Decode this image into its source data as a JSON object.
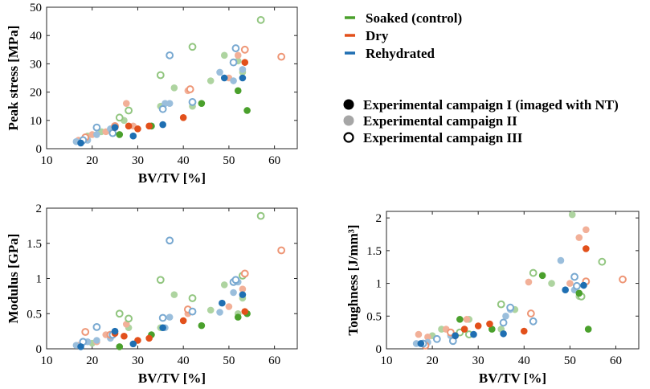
{
  "colors": {
    "soaked": "#4aa02c",
    "dry": "#e2501b",
    "rehydrated": "#1f6fb2",
    "campaign_solid": "#000000",
    "campaign_light": "#a6a6a6"
  },
  "legend": {
    "conditions": [
      {
        "key": "soaked",
        "label": "Soaked (control)"
      },
      {
        "key": "dry",
        "label": "Dry"
      },
      {
        "key": "rehydrated",
        "label": "Rehydrated"
      }
    ],
    "campaigns": [
      {
        "style": "I",
        "label": "Experimental campaign I (imaged with NT)"
      },
      {
        "style": "II",
        "label": "Experimental campaign II"
      },
      {
        "style": "III",
        "label": "Experimental campaign III"
      }
    ]
  },
  "chart_data": [
    {
      "id": "peak",
      "type": "scatter",
      "xlabel": "BV/TV [%]",
      "ylabel": "Peak stress [MPa]",
      "xlim": [
        10,
        65
      ],
      "ylim": [
        0,
        50
      ],
      "xticks": [
        10,
        20,
        30,
        40,
        50,
        60
      ],
      "yticks": [
        0,
        10,
        20,
        30,
        40,
        50
      ],
      "series": [
        {
          "name": "Soaked (control)",
          "color": "soaked",
          "campaign": "I",
          "points": [
            [
              26,
              5
            ],
            [
              33,
              8
            ],
            [
              44,
              16
            ],
            [
              52,
              20.5
            ],
            [
              54,
              13.5
            ]
          ]
        },
        {
          "name": "Dry",
          "color": "dry",
          "campaign": "I",
          "points": [
            [
              25,
              7.5
            ],
            [
              28,
              8
            ],
            [
              30,
              7
            ],
            [
              32.5,
              8
            ],
            [
              40,
              11
            ],
            [
              53.5,
              30.5
            ]
          ]
        },
        {
          "name": "Rehydrated",
          "color": "rehydrated",
          "campaign": "I",
          "points": [
            [
              17.5,
              2
            ],
            [
              25,
              7.5
            ],
            [
              29,
              4.5
            ],
            [
              35.5,
              8.5
            ],
            [
              49,
              25
            ],
            [
              53,
              25
            ]
          ]
        },
        {
          "name": "Soaked (control)",
          "color": "soaked",
          "campaign": "II",
          "points": [
            [
              19,
              4.5
            ],
            [
              22,
              6
            ],
            [
              24,
              6.5
            ],
            [
              27,
              10
            ],
            [
              35,
              15
            ],
            [
              38,
              21.5
            ],
            [
              42,
              15
            ],
            [
              46,
              24
            ],
            [
              49,
              33
            ],
            [
              52,
              31
            ],
            [
              53,
              27
            ]
          ]
        },
        {
          "name": "Dry",
          "color": "dry",
          "campaign": "II",
          "points": [
            [
              17,
              3
            ],
            [
              20,
              5
            ],
            [
              23,
              6
            ],
            [
              27.5,
              16
            ],
            [
              29,
              8
            ],
            [
              41,
              20.5
            ],
            [
              50,
              25
            ],
            [
              52,
              33
            ]
          ]
        },
        {
          "name": "Rehydrated",
          "color": "rehydrated",
          "campaign": "II",
          "points": [
            [
              16.5,
              2.5
            ],
            [
              19,
              3
            ],
            [
              21,
              5
            ],
            [
              24,
              7
            ],
            [
              36,
              16
            ],
            [
              37,
              16
            ],
            [
              48,
              27
            ],
            [
              51,
              24
            ],
            [
              53,
              28
            ]
          ]
        },
        {
          "name": "Soaked (control)",
          "color": "soaked",
          "campaign": "III",
          "points": [
            [
              26,
              11
            ],
            [
              28,
              13.5
            ],
            [
              35,
              26
            ],
            [
              42,
              36
            ],
            [
              57,
              45.5
            ]
          ]
        },
        {
          "name": "Dry",
          "color": "dry",
          "campaign": "III",
          "points": [
            [
              18.5,
              4
            ],
            [
              25,
              8
            ],
            [
              41.5,
              21
            ],
            [
              53.5,
              35
            ],
            [
              61.5,
              32.5
            ]
          ]
        },
        {
          "name": "Rehydrated",
          "color": "rehydrated",
          "campaign": "III",
          "points": [
            [
              18,
              3
            ],
            [
              21,
              7.5
            ],
            [
              24.5,
              5.5
            ],
            [
              35.5,
              14
            ],
            [
              37,
              33
            ],
            [
              42,
              16.5
            ],
            [
              51,
              30.5
            ],
            [
              51.5,
              35.5
            ]
          ]
        }
      ]
    },
    {
      "id": "modulus",
      "type": "scatter",
      "xlabel": "BV/TV [%]",
      "ylabel": "Modulus [GPa]",
      "xlim": [
        10,
        65
      ],
      "ylim": [
        0,
        2
      ],
      "xticks": [
        10,
        20,
        30,
        40,
        50,
        60
      ],
      "yticks": [
        0,
        0.5,
        1,
        1.5,
        2
      ],
      "ytickLabels": [
        "0",
        "0.5",
        "1",
        "1.5",
        "2"
      ],
      "series": [
        {
          "name": "Soaked (control)",
          "color": "soaked",
          "campaign": "I",
          "points": [
            [
              26,
              0.03
            ],
            [
              33,
              0.2
            ],
            [
              44,
              0.33
            ],
            [
              52,
              0.45
            ],
            [
              54,
              0.5
            ]
          ]
        },
        {
          "name": "Dry",
          "color": "dry",
          "campaign": "I",
          "points": [
            [
              25,
              0.22
            ],
            [
              27,
              0.18
            ],
            [
              30,
              0.12
            ],
            [
              32.5,
              0.15
            ],
            [
              40,
              0.4
            ],
            [
              53.5,
              0.53
            ]
          ]
        },
        {
          "name": "Rehydrated",
          "color": "rehydrated",
          "campaign": "I",
          "points": [
            [
              17.5,
              0.03
            ],
            [
              25,
              0.25
            ],
            [
              29,
              0.07
            ],
            [
              35.5,
              0.3
            ],
            [
              48.5,
              0.65
            ],
            [
              53,
              0.77
            ]
          ]
        },
        {
          "name": "Soaked (control)",
          "color": "soaked",
          "campaign": "II",
          "points": [
            [
              20,
              0.08
            ],
            [
              24,
              0.17
            ],
            [
              28,
              0.3
            ],
            [
              35,
              0.3
            ],
            [
              38,
              0.77
            ],
            [
              46,
              0.55
            ],
            [
              49,
              0.91
            ],
            [
              52,
              0.5
            ],
            [
              53,
              0.72
            ]
          ]
        },
        {
          "name": "Dry",
          "color": "dry",
          "campaign": "II",
          "points": [
            [
              17,
              0.05
            ],
            [
              21,
              0.1
            ],
            [
              23,
              0.2
            ],
            [
              27.5,
              0.35
            ],
            [
              41,
              0.5
            ],
            [
              50,
              0.6
            ],
            [
              53,
              0.85
            ]
          ]
        },
        {
          "name": "Rehydrated",
          "color": "rehydrated",
          "campaign": "II",
          "points": [
            [
              16.5,
              0.05
            ],
            [
              19,
              0.1
            ],
            [
              21,
              0.12
            ],
            [
              24,
              0.15
            ],
            [
              36,
              0.3
            ],
            [
              37,
              0.45
            ],
            [
              48,
              0.52
            ],
            [
              51,
              0.8
            ],
            [
              52,
              0.95
            ]
          ]
        },
        {
          "name": "Soaked (control)",
          "color": "soaked",
          "campaign": "III",
          "points": [
            [
              26,
              0.5
            ],
            [
              28,
              0.43
            ],
            [
              35,
              0.98
            ],
            [
              42,
              0.72
            ],
            [
              53,
              1.04
            ],
            [
              57,
              1.89
            ]
          ]
        },
        {
          "name": "Dry",
          "color": "dry",
          "campaign": "III",
          "points": [
            [
              18.5,
              0.24
            ],
            [
              24,
              0.2
            ],
            [
              41,
              0.56
            ],
            [
              53.5,
              1.07
            ],
            [
              61.5,
              1.4
            ]
          ]
        },
        {
          "name": "Rehydrated",
          "color": "rehydrated",
          "campaign": "III",
          "points": [
            [
              18,
              0.1
            ],
            [
              21,
              0.31
            ],
            [
              24.5,
              0.2
            ],
            [
              35.5,
              0.44
            ],
            [
              37,
              1.54
            ],
            [
              42,
              0.53
            ],
            [
              51,
              0.95
            ],
            [
              51.5,
              0.98
            ]
          ]
        }
      ]
    },
    {
      "id": "toughness",
      "type": "scatter",
      "xlabel": "BV/TV [%]",
      "ylabel": "Toughness [J/mm³]",
      "xlim": [
        10,
        65
      ],
      "ylim": [
        0,
        2.1
      ],
      "xticks": [
        10,
        20,
        30,
        40,
        50,
        60
      ],
      "yticks": [
        0,
        0.5,
        1,
        1.5,
        2
      ],
      "ytickLabels": [
        "0",
        "0.5",
        "1",
        "1.5",
        "2"
      ],
      "series": [
        {
          "name": "Soaked (control)",
          "color": "soaked",
          "campaign": "I",
          "points": [
            [
              26,
              0.45
            ],
            [
              33,
              0.3
            ],
            [
              44,
              1.12
            ],
            [
              52,
              0.85
            ],
            [
              54,
              0.3
            ]
          ]
        },
        {
          "name": "Dry",
          "color": "dry",
          "campaign": "I",
          "points": [
            [
              25,
              0.2
            ],
            [
              27,
              0.3
            ],
            [
              30,
              0.35
            ],
            [
              32.5,
              0.38
            ],
            [
              40,
              0.27
            ],
            [
              53.5,
              1.53
            ]
          ]
        },
        {
          "name": "Rehydrated",
          "color": "rehydrated",
          "campaign": "I",
          "points": [
            [
              17.5,
              0.08
            ],
            [
              25,
              0.2
            ],
            [
              29,
              0.22
            ],
            [
              35.5,
              0.23
            ],
            [
              49,
              0.9
            ],
            [
              53,
              0.97
            ]
          ]
        },
        {
          "name": "Soaked (control)",
          "color": "soaked",
          "campaign": "II",
          "points": [
            [
              20,
              0.2
            ],
            [
              22,
              0.3
            ],
            [
              28,
              0.45
            ],
            [
              35,
              0.3
            ],
            [
              38,
              0.6
            ],
            [
              46,
              1.0
            ],
            [
              50.5,
              2.05
            ],
            [
              52,
              0.8
            ]
          ]
        },
        {
          "name": "Dry",
          "color": "dry",
          "campaign": "II",
          "points": [
            [
              17,
              0.22
            ],
            [
              19,
              0.18
            ],
            [
              23,
              0.3
            ],
            [
              27.5,
              0.45
            ],
            [
              41,
              1.02
            ],
            [
              50,
              1.0
            ],
            [
              52,
              1.7
            ],
            [
              53.5,
              1.82
            ]
          ]
        },
        {
          "name": "Rehydrated",
          "color": "rehydrated",
          "campaign": "II",
          "points": [
            [
              16.5,
              0.08
            ],
            [
              19,
              0.1
            ],
            [
              21,
              0.15
            ],
            [
              24,
              0.2
            ],
            [
              36,
              0.5
            ],
            [
              37,
              0.6
            ],
            [
              48,
              1.35
            ],
            [
              51,
              0.9
            ]
          ]
        },
        {
          "name": "Soaked (control)",
          "color": "soaked",
          "campaign": "III",
          "points": [
            [
              26,
              0.25
            ],
            [
              28,
              0.22
            ],
            [
              35,
              0.68
            ],
            [
              42,
              1.16
            ],
            [
              52.5,
              0.8
            ],
            [
              57,
              1.33
            ]
          ]
        },
        {
          "name": "Dry",
          "color": "dry",
          "campaign": "III",
          "points": [
            [
              18.5,
              0.05
            ],
            [
              24,
              0.25
            ],
            [
              41.5,
              0.54
            ],
            [
              53.5,
              1.03
            ],
            [
              61.5,
              1.06
            ]
          ]
        },
        {
          "name": "Rehydrated",
          "color": "rehydrated",
          "campaign": "III",
          "points": [
            [
              18,
              0.08
            ],
            [
              21,
              0.15
            ],
            [
              24.5,
              0.12
            ],
            [
              35.5,
              0.4
            ],
            [
              37,
              0.63
            ],
            [
              42,
              0.42
            ],
            [
              51,
              1.1
            ],
            [
              51.5,
              0.96
            ]
          ]
        }
      ]
    }
  ]
}
